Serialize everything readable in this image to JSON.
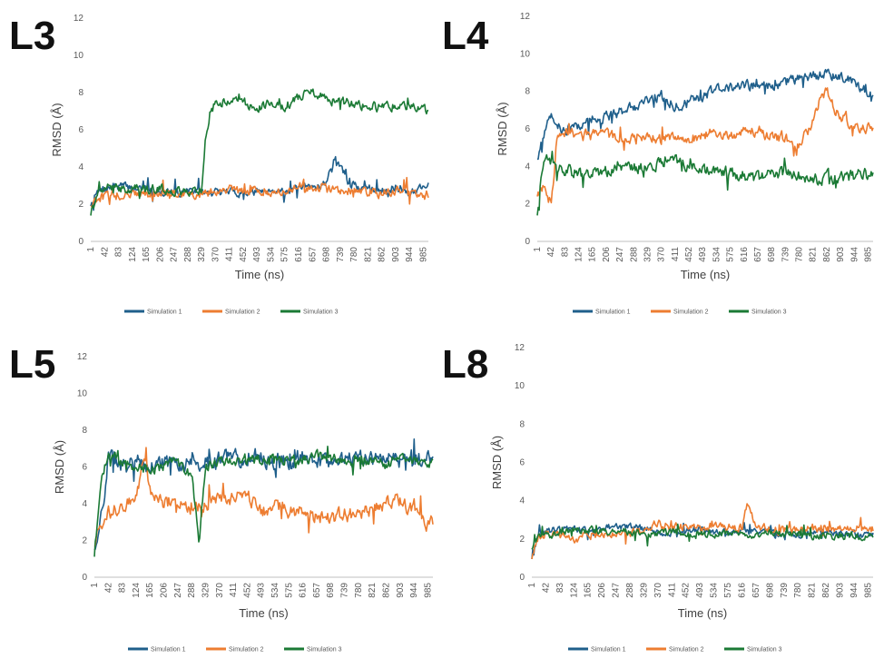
{
  "chart_data": [
    {
      "panel": "L3",
      "type": "line",
      "xlabel": "Time (ns)",
      "ylabel": "RMSD (Å)",
      "ylim": [
        0,
        12
      ],
      "yticks": [
        "0",
        "2",
        "4",
        "6",
        "8",
        "10",
        "12"
      ],
      "xticks": [
        "1",
        "42",
        "83",
        "124",
        "165",
        "206",
        "247",
        "288",
        "329",
        "370",
        "411",
        "452",
        "493",
        "534",
        "575",
        "616",
        "657",
        "698",
        "739",
        "780",
        "821",
        "862",
        "903",
        "944",
        "985"
      ],
      "grid": false,
      "legend_position": "bottom",
      "series": [
        {
          "name": "Simulation 1",
          "color": "#1f5f8b",
          "x": [
            1,
            20,
            42,
            83,
            124,
            165,
            206,
            247,
            288,
            329,
            370,
            411,
            452,
            493,
            534,
            575,
            616,
            657,
            698,
            720,
            739,
            760,
            780,
            821,
            862,
            903,
            944,
            985
          ],
          "y": [
            2.0,
            2.6,
            2.8,
            3.0,
            2.9,
            2.8,
            2.7,
            2.6,
            2.7,
            2.6,
            2.6,
            2.7,
            2.6,
            2.7,
            2.8,
            2.7,
            2.8,
            2.9,
            3.2,
            4.3,
            4.2,
            3.2,
            3.0,
            2.8,
            2.8,
            2.9,
            2.6,
            3.0
          ],
          "noise": 0.35
        },
        {
          "name": "Simulation 2",
          "color": "#ed7d31",
          "x": [
            1,
            20,
            42,
            83,
            124,
            165,
            206,
            247,
            288,
            329,
            370,
            411,
            452,
            493,
            534,
            575,
            616,
            657,
            698,
            739,
            780,
            821,
            862,
            903,
            944,
            985
          ],
          "y": [
            2.0,
            2.3,
            2.4,
            2.5,
            2.5,
            2.6,
            2.5,
            2.6,
            2.5,
            2.6,
            2.7,
            2.8,
            2.7,
            2.8,
            2.7,
            2.8,
            2.9,
            2.8,
            2.8,
            2.7,
            2.8,
            2.7,
            2.6,
            2.7,
            2.6,
            2.5
          ],
          "noise": 0.4
        },
        {
          "name": "Simulation 3",
          "color": "#1b7a35",
          "x": [
            1,
            20,
            42,
            83,
            124,
            165,
            206,
            247,
            288,
            329,
            340,
            355,
            370,
            411,
            452,
            493,
            534,
            575,
            616,
            657,
            698,
            739,
            780,
            821,
            862,
            903,
            944,
            985
          ],
          "y": [
            1.5,
            2.5,
            3.0,
            2.8,
            2.9,
            2.8,
            2.8,
            2.7,
            2.7,
            2.8,
            5.5,
            7.0,
            7.4,
            7.6,
            7.5,
            7.2,
            7.5,
            7.2,
            7.8,
            8.0,
            7.6,
            7.5,
            7.4,
            7.3,
            7.2,
            7.3,
            7.2,
            7.0
          ],
          "noise": 0.4
        }
      ]
    },
    {
      "panel": "L4",
      "type": "line",
      "xlabel": "Time (ns)",
      "ylabel": "RMSD (Å)",
      "ylim": [
        0,
        12
      ],
      "yticks": [
        "0",
        "2",
        "4",
        "6",
        "8",
        "10",
        "12"
      ],
      "xticks": [
        "1",
        "42",
        "83",
        "124",
        "165",
        "206",
        "247",
        "288",
        "329",
        "370",
        "411",
        "452",
        "493",
        "534",
        "575",
        "616",
        "657",
        "698",
        "739",
        "780",
        "821",
        "862",
        "903",
        "944",
        "985"
      ],
      "grid": false,
      "legend_position": "bottom",
      "series": [
        {
          "name": "Simulation 1",
          "color": "#1f5f8b",
          "x": [
            1,
            20,
            42,
            83,
            124,
            165,
            206,
            247,
            288,
            329,
            370,
            411,
            452,
            493,
            534,
            575,
            616,
            657,
            698,
            739,
            780,
            821,
            862,
            903,
            944,
            985
          ],
          "y": [
            4.5,
            5.5,
            6.8,
            5.8,
            6.2,
            6.4,
            6.6,
            6.9,
            7.2,
            7.6,
            7.8,
            7.2,
            7.4,
            7.8,
            8.0,
            8.2,
            8.4,
            8.2,
            8.3,
            8.5,
            8.6,
            8.8,
            9.0,
            8.8,
            8.4,
            8.0
          ],
          "noise": 0.45
        },
        {
          "name": "Simulation 2",
          "color": "#ed7d31",
          "x": [
            1,
            20,
            42,
            60,
            83,
            124,
            165,
            206,
            247,
            288,
            329,
            370,
            411,
            452,
            493,
            534,
            575,
            616,
            657,
            698,
            739,
            780,
            821,
            840,
            862,
            880,
            903,
            944,
            985
          ],
          "y": [
            2.5,
            3.0,
            2.0,
            5.5,
            5.8,
            5.8,
            5.6,
            5.7,
            5.6,
            5.5,
            5.6,
            5.4,
            5.6,
            5.5,
            5.6,
            5.8,
            5.7,
            5.8,
            5.9,
            5.6,
            5.5,
            5.0,
            6.5,
            7.5,
            8.0,
            7.2,
            6.6,
            6.2,
            6.0
          ],
          "noise": 0.45
        },
        {
          "name": "Simulation 3",
          "color": "#1b7a35",
          "x": [
            1,
            20,
            42,
            83,
            124,
            165,
            206,
            247,
            288,
            329,
            370,
            411,
            452,
            493,
            534,
            575,
            616,
            657,
            698,
            739,
            780,
            821,
            862,
            903,
            944,
            985
          ],
          "y": [
            1.5,
            4.5,
            4.2,
            3.8,
            3.6,
            3.7,
            3.8,
            3.8,
            4.0,
            3.9,
            4.1,
            4.3,
            4.0,
            3.9,
            3.8,
            3.6,
            3.5,
            3.4,
            3.6,
            3.7,
            3.5,
            3.3,
            3.3,
            3.4,
            3.5,
            3.6
          ],
          "noise": 0.5
        }
      ]
    },
    {
      "panel": "L5",
      "type": "line",
      "xlabel": "Time (ns)",
      "ylabel": "RMSD (Å)",
      "ylim": [
        0,
        12
      ],
      "yticks": [
        "0",
        "2",
        "4",
        "6",
        "8",
        "10",
        "12"
      ],
      "xticks": [
        "1",
        "42",
        "83",
        "124",
        "165",
        "206",
        "247",
        "288",
        "329",
        "370",
        "411",
        "452",
        "493",
        "534",
        "575",
        "616",
        "657",
        "698",
        "739",
        "780",
        "821",
        "862",
        "903",
        "944",
        "985"
      ],
      "grid": false,
      "legend_position": "bottom",
      "series": [
        {
          "name": "Simulation 1",
          "color": "#1f5f8b",
          "x": [
            1,
            20,
            42,
            83,
            124,
            165,
            206,
            247,
            288,
            329,
            370,
            411,
            452,
            493,
            534,
            575,
            616,
            657,
            698,
            739,
            780,
            821,
            862,
            903,
            944,
            985
          ],
          "y": [
            1.5,
            3.0,
            6.5,
            6.2,
            6.4,
            6.0,
            6.2,
            6.1,
            6.3,
            6.2,
            6.5,
            6.4,
            6.6,
            6.5,
            6.3,
            6.4,
            6.5,
            6.2,
            6.4,
            6.3,
            6.5,
            6.4,
            6.4,
            6.3,
            6.4,
            6.5
          ],
          "noise": 0.7
        },
        {
          "name": "Simulation 2",
          "color": "#ed7d31",
          "x": [
            1,
            20,
            42,
            83,
            124,
            145,
            165,
            206,
            247,
            288,
            329,
            370,
            411,
            452,
            493,
            534,
            575,
            616,
            657,
            698,
            739,
            780,
            821,
            862,
            903,
            944,
            985
          ],
          "y": [
            1.8,
            3.0,
            3.5,
            4.0,
            4.2,
            6.5,
            4.8,
            4.0,
            4.2,
            3.8,
            4.0,
            4.2,
            4.3,
            4.5,
            3.5,
            4.0,
            3.5,
            3.6,
            3.3,
            3.2,
            3.5,
            3.2,
            3.8,
            4.0,
            4.2,
            3.5,
            3.0
          ],
          "noise": 0.6
        },
        {
          "name": "Simulation 3",
          "color": "#1b7a35",
          "x": [
            1,
            20,
            42,
            83,
            124,
            165,
            206,
            247,
            288,
            310,
            329,
            370,
            411,
            452,
            493,
            534,
            575,
            616,
            657,
            698,
            739,
            780,
            821,
            862,
            903,
            944,
            985
          ],
          "y": [
            1.2,
            5.5,
            6.5,
            6.4,
            6.0,
            5.8,
            6.0,
            6.2,
            5.5,
            2.0,
            6.0,
            6.2,
            6.4,
            6.3,
            6.4,
            6.5,
            6.3,
            6.4,
            6.6,
            6.5,
            6.4,
            6.3,
            6.4,
            6.2,
            6.5,
            6.4,
            6.3
          ],
          "noise": 0.45
        }
      ]
    },
    {
      "panel": "L8",
      "type": "line",
      "xlabel": "Time (ns)",
      "ylabel": "RMSD (Å)",
      "ylim": [
        0,
        12
      ],
      "yticks": [
        "0",
        "2",
        "4",
        "6",
        "8",
        "10",
        "12"
      ],
      "xticks": [
        "1",
        "42",
        "83",
        "124",
        "165",
        "206",
        "247",
        "288",
        "329",
        "370",
        "411",
        "452",
        "493",
        "534",
        "575",
        "616",
        "657",
        "698",
        "739",
        "780",
        "821",
        "862",
        "903",
        "944",
        "985"
      ],
      "grid": false,
      "legend_position": "bottom",
      "series": [
        {
          "name": "Simulation 1",
          "color": "#1f5f8b",
          "x": [
            1,
            20,
            42,
            83,
            124,
            165,
            206,
            247,
            288,
            329,
            370,
            411,
            452,
            493,
            534,
            575,
            616,
            657,
            698,
            739,
            780,
            821,
            862,
            903,
            944,
            985
          ],
          "y": [
            1.0,
            2.2,
            2.4,
            2.5,
            2.5,
            2.4,
            2.6,
            2.6,
            2.7,
            2.5,
            2.4,
            2.3,
            2.4,
            2.5,
            2.4,
            2.3,
            2.4,
            2.3,
            2.4,
            2.3,
            2.2,
            2.3,
            2.4,
            2.3,
            2.2,
            2.2
          ],
          "noise": 0.3
        },
        {
          "name": "Simulation 2",
          "color": "#ed7d31",
          "x": [
            1,
            20,
            42,
            83,
            124,
            165,
            206,
            247,
            288,
            329,
            370,
            411,
            452,
            493,
            534,
            575,
            616,
            630,
            657,
            698,
            739,
            780,
            821,
            862,
            903,
            944,
            985
          ],
          "y": [
            1.0,
            2.1,
            2.3,
            2.2,
            2.0,
            2.2,
            2.3,
            2.2,
            2.3,
            2.4,
            2.8,
            2.6,
            2.6,
            2.5,
            2.7,
            2.6,
            2.6,
            3.8,
            2.6,
            2.5,
            2.4,
            2.5,
            2.6,
            2.5,
            2.6,
            2.6,
            2.5
          ],
          "noise": 0.35
        },
        {
          "name": "Simulation 3",
          "color": "#1b7a35",
          "x": [
            1,
            20,
            42,
            83,
            124,
            165,
            206,
            247,
            288,
            329,
            370,
            411,
            452,
            493,
            534,
            575,
            616,
            657,
            698,
            739,
            780,
            821,
            862,
            903,
            944,
            985
          ],
          "y": [
            1.5,
            2.3,
            2.2,
            2.3,
            2.4,
            2.5,
            2.4,
            2.3,
            2.4,
            2.3,
            2.3,
            2.4,
            2.3,
            2.3,
            2.2,
            2.3,
            2.3,
            2.2,
            2.3,
            2.2,
            2.3,
            2.1,
            2.2,
            2.1,
            2.2,
            2.1
          ],
          "noise": 0.3
        }
      ]
    }
  ]
}
